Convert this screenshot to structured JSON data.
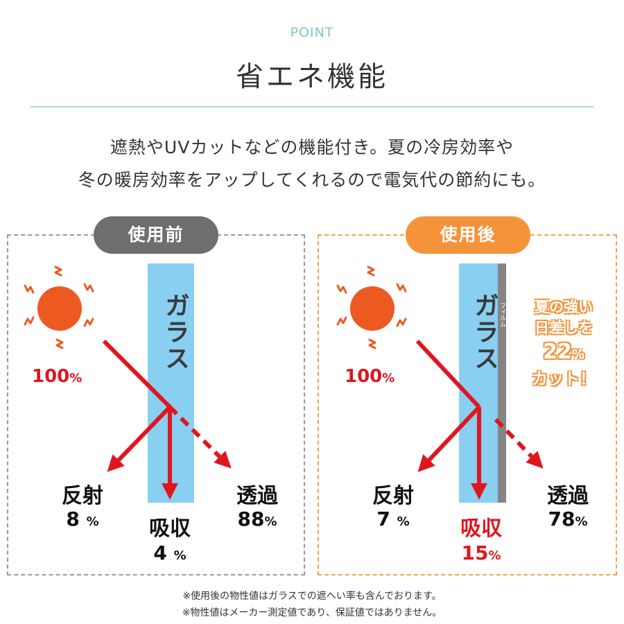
{
  "header": {
    "eyebrow": "POINT",
    "title": "省エネ機能"
  },
  "description": {
    "line1": "遮熱やUVカットなどの機能付き。夏の冷房効率や",
    "line2": "冬の暖房効率をアップしてくれるので電気代の節約にも。"
  },
  "before": {
    "badge": "使用前",
    "glass_label": "ガラス",
    "incoming": "100",
    "reflect_label": "反射",
    "reflect_value": "8",
    "absorb_label": "吸収",
    "absorb_value": "4",
    "transmit_label": "透過",
    "transmit_value": "88"
  },
  "after": {
    "badge": "使用後",
    "glass_label": "ガラス",
    "film_label": "フィルム",
    "incoming": "100",
    "reflect_label": "反射",
    "reflect_value": "7",
    "absorb_label": "吸収",
    "absorb_value": "15",
    "transmit_label": "透過",
    "transmit_value": "78",
    "promo_line1": "夏の強い",
    "promo_line2": "日差しを",
    "promo_number": "22",
    "promo_line4": "カット！"
  },
  "percent_sign": "%",
  "notes": {
    "line1": "※使用後の物性値はガラスでの遮へい率も含んでおります。",
    "line2": "※物性値はメーカー測定値であり、保証値ではありません。"
  },
  "colors": {
    "teal": "#7cc8c4",
    "orange": "#f5933b",
    "red": "#e0161f",
    "sun": "#ec5a22",
    "glass": "#88cff1"
  }
}
